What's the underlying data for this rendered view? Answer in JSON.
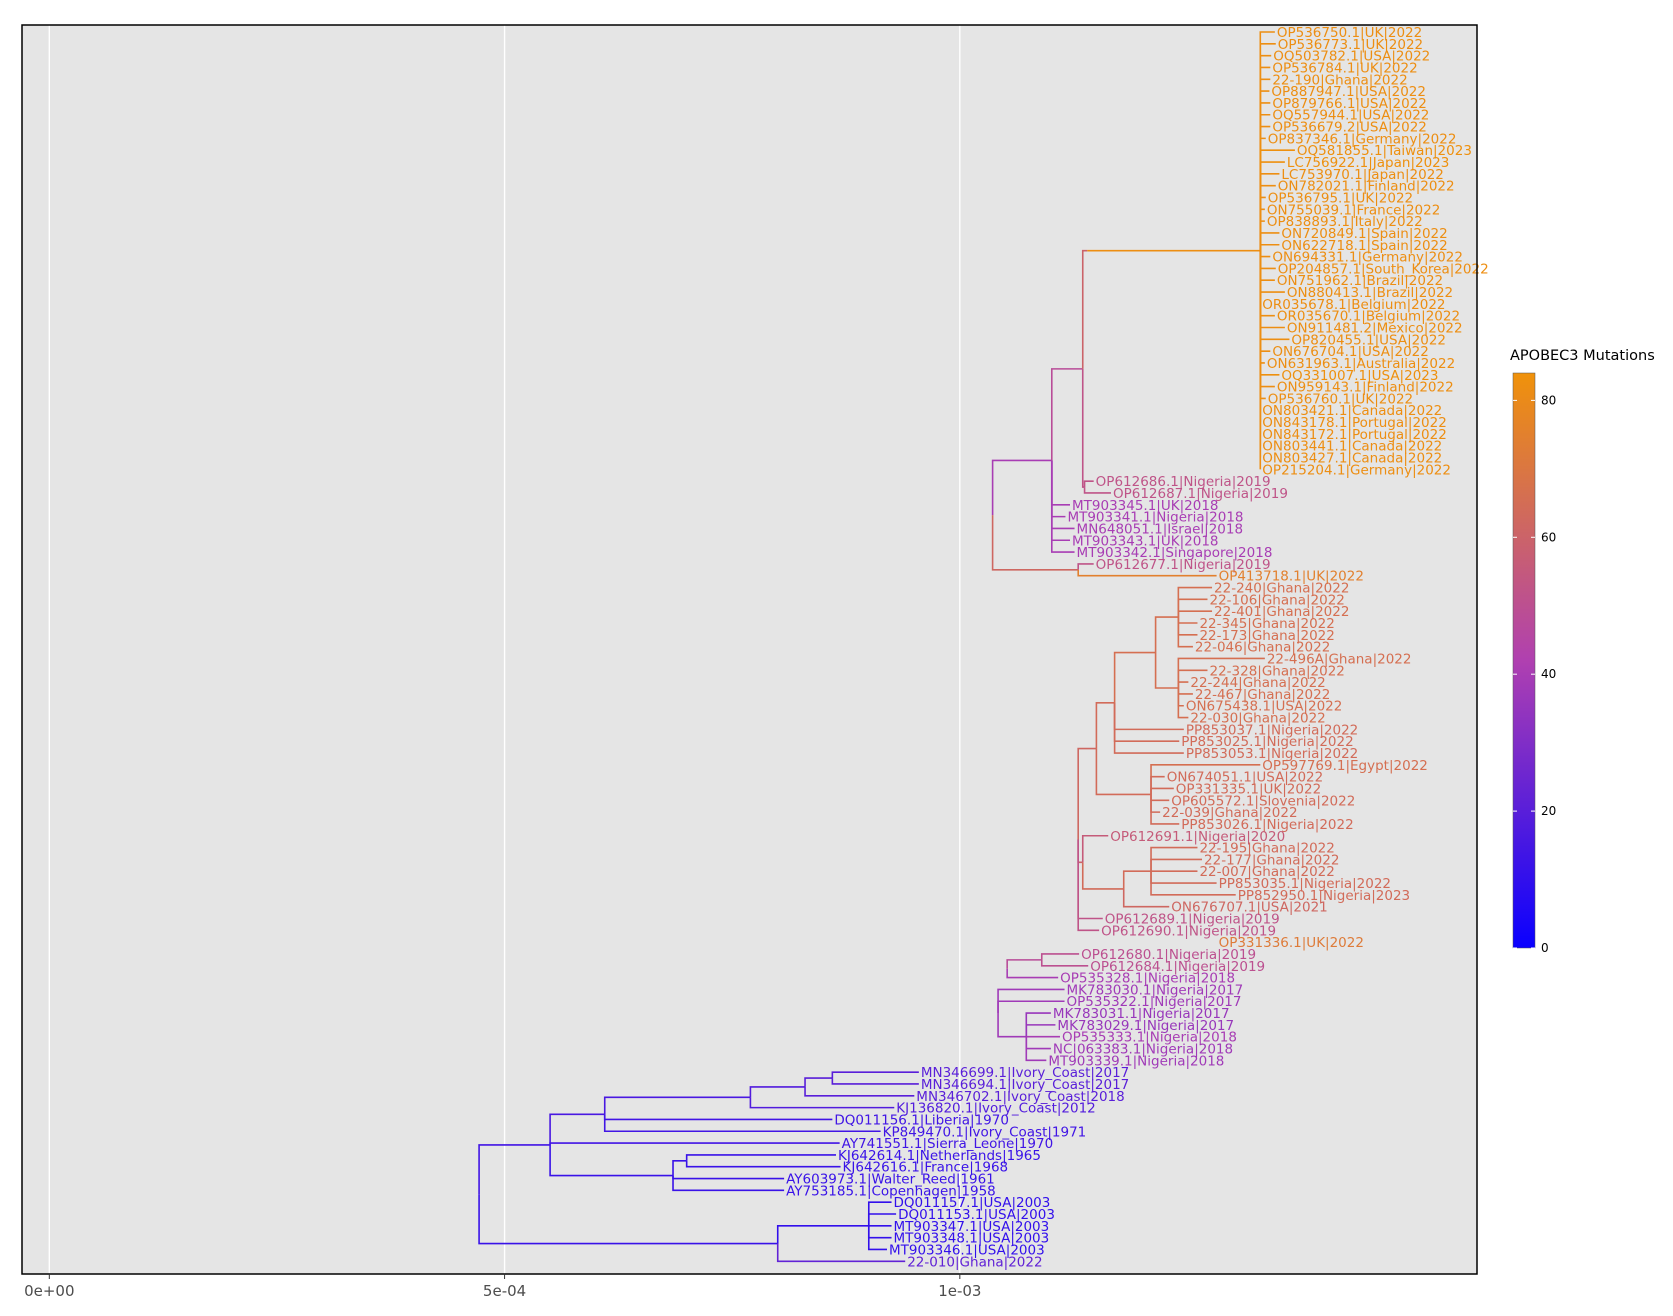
{
  "colors": {
    "panel_background": "#e5e5e5",
    "grid": "#ffffff",
    "panel_border": "#000000",
    "gradient_low": "#0a00ff",
    "gradient_mid": "#b040b0",
    "gradient_high": "#f0920a"
  },
  "chart_data": {
    "type": "phylogenetic_tree",
    "title": "",
    "xlabel": "",
    "ylabel": "",
    "xlim": [
      -3e-05,
      0.001568
    ],
    "x_ticks": [
      0,
      0.0005,
      0.001
    ],
    "x_tick_labels": [
      "0e+00",
      "5e-04",
      "1e-03"
    ],
    "grid": true,
    "legend": {
      "title": "APOBEC3 Mutations",
      "position": "right",
      "min": 0,
      "max": 84,
      "ticks": [
        0,
        20,
        40,
        60,
        80
      ]
    },
    "tips": [
      {
        "label": "OP536750.1|UK|2022",
        "x": 0.001346,
        "mut": 82
      },
      {
        "label": "OP536773.1|UK|2022",
        "x": 0.001347,
        "mut": 82
      },
      {
        "label": "OQ503782.1|USA|2022",
        "x": 0.001342,
        "mut": 82
      },
      {
        "label": "OP536784.1|UK|2022",
        "x": 0.001341,
        "mut": 82
      },
      {
        "label": "22-190|Ghana|2022",
        "x": 0.001341,
        "mut": 82
      },
      {
        "label": "OP887947.1|USA|2022",
        "x": 0.00134,
        "mut": 82
      },
      {
        "label": "OP879766.1|USA|2022",
        "x": 0.001341,
        "mut": 82
      },
      {
        "label": "OQ557944.1|USA|2022",
        "x": 0.001341,
        "mut": 82
      },
      {
        "label": "OP536679.2|USA|2022",
        "x": 0.001341,
        "mut": 82
      },
      {
        "label": "OP837346.1|Germany|2022",
        "x": 0.001336,
        "mut": 82
      },
      {
        "label": "OQ581855.1|Taiwan|2023",
        "x": 0.001368,
        "mut": 83
      },
      {
        "label": "LC756922.1|Japan|2023",
        "x": 0.001357,
        "mut": 83
      },
      {
        "label": "LC753970.1|Japan|2022",
        "x": 0.001351,
        "mut": 82
      },
      {
        "label": "ON782021.1|Finland|2022",
        "x": 0.001347,
        "mut": 82
      },
      {
        "label": "OP536795.1|UK|2022",
        "x": 0.001336,
        "mut": 82
      },
      {
        "label": "ON755039.1|France|2022",
        "x": 0.001335,
        "mut": 82
      },
      {
        "label": "OP838893.1|Italy|2022",
        "x": 0.001335,
        "mut": 82
      },
      {
        "label": "ON720849.1|Spain|2022",
        "x": 0.001351,
        "mut": 82
      },
      {
        "label": "ON622718.1|Spain|2022",
        "x": 0.001351,
        "mut": 82
      },
      {
        "label": "ON694331.1|Germany|2022",
        "x": 0.001341,
        "mut": 82
      },
      {
        "label": "OP204857.1|South_Korea|2022",
        "x": 0.001347,
        "mut": 82
      },
      {
        "label": "ON751962.1|Brazil|2022",
        "x": 0.001346,
        "mut": 82
      },
      {
        "label": "ON880413.1|Brazil|2022",
        "x": 0.001357,
        "mut": 82
      },
      {
        "label": "OR035678.1|Belgium|2022",
        "x": 0.00133,
        "mut": 82
      },
      {
        "label": "OR035670.1|Belgium|2022",
        "x": 0.001346,
        "mut": 82
      },
      {
        "label": "ON911481.2|Mexico|2022",
        "x": 0.001357,
        "mut": 82
      },
      {
        "label": "OP820455.1|USA|2022",
        "x": 0.001362,
        "mut": 82
      },
      {
        "label": "ON676704.1|USA|2022",
        "x": 0.001341,
        "mut": 82
      },
      {
        "label": "ON631963.1|Australia|2022",
        "x": 0.001335,
        "mut": 82
      },
      {
        "label": "OQ331007.1|USA|2023",
        "x": 0.001351,
        "mut": 83
      },
      {
        "label": "ON959143.1|Finland|2022",
        "x": 0.001346,
        "mut": 82
      },
      {
        "label": "OP536760.1|UK|2022",
        "x": 0.001336,
        "mut": 82
      },
      {
        "label": "ON803421.1|Canada|2022",
        "x": 0.00133,
        "mut": 82
      },
      {
        "label": "ON843178.1|Portugal|2022",
        "x": 0.00133,
        "mut": 82
      },
      {
        "label": "ON843172.1|Portugal|2022",
        "x": 0.00133,
        "mut": 82
      },
      {
        "label": "ON803441.1|Canada|2022",
        "x": 0.00133,
        "mut": 82
      },
      {
        "label": "ON803427.1|Canada|2022",
        "x": 0.00133,
        "mut": 82
      },
      {
        "label": "OP215204.1|Germany|2022",
        "x": 0.00133,
        "mut": 82
      },
      {
        "label": "OP612686.1|Nigeria|2019",
        "x": 0.001147,
        "mut": 52
      },
      {
        "label": "OP612687.1|Nigeria|2019",
        "x": 0.001166,
        "mut": 52
      },
      {
        "label": "MT903345.1|UK|2018",
        "x": 0.001121,
        "mut": 40
      },
      {
        "label": "MT903341.1|Nigeria|2018",
        "x": 0.001116,
        "mut": 40
      },
      {
        "label": "MN648051.1|Israel|2018",
        "x": 0.001126,
        "mut": 40
      },
      {
        "label": "MT903343.1|UK|2018",
        "x": 0.001121,
        "mut": 40
      },
      {
        "label": "MT903342.1|Singapore|2018",
        "x": 0.001126,
        "mut": 40
      },
      {
        "label": "OP612677.1|Nigeria|2019",
        "x": 0.001147,
        "mut": 52
      },
      {
        "label": "OP413718.1|UK|2022",
        "x": 0.001282,
        "mut": 75
      },
      {
        "label": "22-240|Ghana|2022",
        "x": 0.001277,
        "mut": 66
      },
      {
        "label": "22-106|Ghana|2022",
        "x": 0.001272,
        "mut": 66
      },
      {
        "label": "22-401|Ghana|2022",
        "x": 0.001277,
        "mut": 66
      },
      {
        "label": "22-345|Ghana|2022",
        "x": 0.001261,
        "mut": 66
      },
      {
        "label": "22-173|Ghana|2022",
        "x": 0.001261,
        "mut": 66
      },
      {
        "label": "22-046|Ghana|2022",
        "x": 0.001256,
        "mut": 66
      },
      {
        "label": "22-496A|Ghana|2022",
        "x": 0.001335,
        "mut": 66
      },
      {
        "label": "22-328|Ghana|2022",
        "x": 0.001272,
        "mut": 66
      },
      {
        "label": "22-244|Ghana|2022",
        "x": 0.001251,
        "mut": 66
      },
      {
        "label": "22-467|Ghana|2022",
        "x": 0.001256,
        "mut": 66
      },
      {
        "label": "ON675438.1|USA|2022",
        "x": 0.001246,
        "mut": 66
      },
      {
        "label": "22-030|Ghana|2022",
        "x": 0.001251,
        "mut": 66
      },
      {
        "label": "PP853037.1|Nigeria|2022",
        "x": 0.001246,
        "mut": 64
      },
      {
        "label": "PP853025.1|Nigeria|2022",
        "x": 0.001241,
        "mut": 64
      },
      {
        "label": "PP853053.1|Nigeria|2022",
        "x": 0.001246,
        "mut": 64
      },
      {
        "label": "OP597769.1|Egypt|2022",
        "x": 0.00133,
        "mut": 66
      },
      {
        "label": "ON674051.1|USA|2022",
        "x": 0.001225,
        "mut": 64
      },
      {
        "label": "OP331335.1|UK|2022",
        "x": 0.001235,
        "mut": 64
      },
      {
        "label": "OP605572.1|Slovenia|2022",
        "x": 0.00123,
        "mut": 64
      },
      {
        "label": "22-039|Ghana|2022",
        "x": 0.00122,
        "mut": 64
      },
      {
        "label": "PP853026.1|Nigeria|2022",
        "x": 0.001241,
        "mut": 64
      },
      {
        "label": "OP612691.1|Nigeria|2020",
        "x": 0.001163,
        "mut": 56
      },
      {
        "label": "22-195|Ghana|2022",
        "x": 0.001261,
        "mut": 64
      },
      {
        "label": "22-177|Ghana|2022",
        "x": 0.001266,
        "mut": 64
      },
      {
        "label": "22-007|Ghana|2022",
        "x": 0.001261,
        "mut": 64
      },
      {
        "label": "PP853035.1|Nigeria|2022",
        "x": 0.001282,
        "mut": 64
      },
      {
        "label": "PP852950.1|Nigeria|2023",
        "x": 0.001303,
        "mut": 64
      },
      {
        "label": "ON676707.1|USA|2021",
        "x": 0.00123,
        "mut": 62
      },
      {
        "label": "OP612689.1|Nigeria|2019",
        "x": 0.001157,
        "mut": 52
      },
      {
        "label": "OP612690.1|Nigeria|2019",
        "x": 0.001153,
        "mut": 52
      },
      {
        "label": "OP331336.1|UK|2022",
        "x": 0.001282,
        "mut": 72
      },
      {
        "label": "OP612680.1|Nigeria|2019",
        "x": 0.001131,
        "mut": 50
      },
      {
        "label": "OP612684.1|Nigeria|2019",
        "x": 0.001141,
        "mut": 50
      },
      {
        "label": "OP535328.1|Nigeria|2018",
        "x": 0.001108,
        "mut": 40
      },
      {
        "label": "MK783030.1|Nigeria|2017",
        "x": 0.001115,
        "mut": 38
      },
      {
        "label": "OP535322.1|Nigeria|2017",
        "x": 0.001115,
        "mut": 38
      },
      {
        "label": "MK783031.1|Nigeria|2017",
        "x": 0.0011,
        "mut": 36
      },
      {
        "label": "MK783029.1|Nigeria|2017",
        "x": 0.001105,
        "mut": 36
      },
      {
        "label": "OP535333.1|Nigeria|2018",
        "x": 0.00111,
        "mut": 40
      },
      {
        "label": "NC|063383.1|Nigeria|2018",
        "x": 0.0011,
        "mut": 38
      },
      {
        "label": "MT903339.1|Nigeria|2018",
        "x": 0.001095,
        "mut": 38
      },
      {
        "label": "MN346699.1|Ivory_Coast|2017",
        "x": 0.000955,
        "mut": 20
      },
      {
        "label": "MN346694.1|Ivory_Coast|2017",
        "x": 0.000955,
        "mut": 20
      },
      {
        "label": "MN346702.1|Ivory_Coast|2018",
        "x": 0.00095,
        "mut": 20
      },
      {
        "label": "KJ136820.1|Ivory_Coast|2012",
        "x": 0.000928,
        "mut": 18
      },
      {
        "label": "DQ011156.1|Liberia|1970",
        "x": 0.00086,
        "mut": 14
      },
      {
        "label": "KP849470.1|Ivory_Coast|1971",
        "x": 0.000913,
        "mut": 14
      },
      {
        "label": "AY741551.1|Sierra_Leone|1970",
        "x": 0.000868,
        "mut": 14
      },
      {
        "label": "KJ642614.1|Netherlands|1965",
        "x": 0.000864,
        "mut": 12
      },
      {
        "label": "KJ642616.1|France|1968",
        "x": 0.000869,
        "mut": 12
      },
      {
        "label": "AY603973.1|Walter_Reed|1961",
        "x": 0.000807,
        "mut": 12
      },
      {
        "label": "AY753185.1|Copenhagen|1958",
        "x": 0.000807,
        "mut": 12
      },
      {
        "label": "DQ011157.1|USA|2003",
        "x": 0.000925,
        "mut": 10
      },
      {
        "label": "DQ011153.1|USA|2003",
        "x": 0.00093,
        "mut": 10
      },
      {
        "label": "MT903347.1|USA|2003",
        "x": 0.000925,
        "mut": 10
      },
      {
        "label": "MT903348.1|USA|2003",
        "x": 0.000925,
        "mut": 10
      },
      {
        "label": "MT903346.1|USA|2003",
        "x": 0.00092,
        "mut": 10
      },
      {
        "label": "22-010|Ghana|2022",
        "x": 0.00094,
        "mut": 22
      }
    ],
    "internal_nodes": [
      {
        "id": "root",
        "x": 0.0,
        "parent": null,
        "mut": 24
      },
      {
        "id": "A",
        "x": 0.001033,
        "parent": "root",
        "mut": 38
      },
      {
        "id": "B",
        "x": 0.000472,
        "parent": "root",
        "mut": 14
      },
      {
        "id": "C",
        "x": 0.001036,
        "parent": "A",
        "mut": 40
      },
      {
        "id": "D",
        "x": 0.00111,
        "parent": "A",
        "mut": 52
      },
      {
        "id": "E",
        "x": 0.001052,
        "parent": "A",
        "mut": 40
      },
      {
        "id": "F",
        "x": 0.001042,
        "parent": "A",
        "mut": 38
      },
      {
        "id": "G",
        "x": 0.001101,
        "parent": "C",
        "mut": 40
      },
      {
        "id": "H",
        "x": 0.001135,
        "parent": "G",
        "mut": 48
      },
      {
        "id": "I",
        "x": 0.00114,
        "parent": "H",
        "mut": 60
      },
      {
        "id": "J",
        "x": 0.00133,
        "parent": "I",
        "mut": 82
      },
      {
        "id": "K",
        "x": 0.001137,
        "parent": "H",
        "mut": 52
      },
      {
        "id": "L",
        "x": 0.00113,
        "parent": "C",
        "mut": 62
      },
      {
        "id": "M",
        "x": 0.00113,
        "parent": "D",
        "mut": 60
      },
      {
        "id": "N",
        "x": 0.00115,
        "parent": "M",
        "mut": 62
      },
      {
        "id": "O",
        "x": 0.00117,
        "parent": "N",
        "mut": 64
      },
      {
        "id": "P",
        "x": 0.001215,
        "parent": "O",
        "mut": 66
      },
      {
        "id": "Q",
        "x": 0.00124,
        "parent": "P",
        "mut": 66
      },
      {
        "id": "R",
        "x": 0.00124,
        "parent": "P",
        "mut": 66
      },
      {
        "id": "S",
        "x": 0.00121,
        "parent": "N",
        "mut": 64
      },
      {
        "id": "T",
        "x": 0.001135,
        "parent": "M",
        "mut": 60
      },
      {
        "id": "U",
        "x": 0.00118,
        "parent": "T",
        "mut": 64
      },
      {
        "id": "V",
        "x": 0.00121,
        "parent": "U",
        "mut": 64
      },
      {
        "id": "W",
        "x": 0.00119,
        "parent": "D",
        "mut": 62
      },
      {
        "id": "X",
        "x": 0.00124,
        "parent": "W",
        "mut": 64
      },
      {
        "id": "Y",
        "x": 0.00109,
        "parent": "E",
        "mut": 48
      },
      {
        "id": "Z",
        "x": 0.001073,
        "parent": "F",
        "mut": 38
      },
      {
        "id": "b1",
        "x": 0.00055,
        "parent": "B",
        "mut": 14
      },
      {
        "id": "b2",
        "x": 0.00061,
        "parent": "b1",
        "mut": 16
      },
      {
        "id": "b3",
        "x": 0.00077,
        "parent": "b2",
        "mut": 16
      },
      {
        "id": "b4",
        "x": 0.00083,
        "parent": "b3",
        "mut": 18
      },
      {
        "id": "b5",
        "x": 0.00086,
        "parent": "b4",
        "mut": 20
      },
      {
        "id": "b6",
        "x": 0.000685,
        "parent": "b1",
        "mut": 12
      },
      {
        "id": "b7",
        "x": 0.0007,
        "parent": "b6",
        "mut": 12
      },
      {
        "id": "b8",
        "x": 0.0008,
        "parent": "B",
        "mut": 12
      },
      {
        "id": "b9",
        "x": 0.0009,
        "parent": "b8",
        "mut": 10
      }
    ],
    "leaf_parents": [
      "J",
      "J",
      "J",
      "J",
      "J",
      "J",
      "J",
      "J",
      "J",
      "J",
      "J",
      "J",
      "J",
      "J",
      "J",
      "J",
      "J",
      "J",
      "J",
      "J",
      "J",
      "J",
      "J",
      "J",
      "J",
      "J",
      "J",
      "J",
      "J",
      "J",
      "J",
      "J",
      "J",
      "J",
      "J",
      "J",
      "J",
      "J",
      "K",
      "K",
      "G",
      "G",
      "G",
      "G",
      "G",
      "L",
      "L",
      "Q",
      "Q",
      "Q",
      "Q",
      "Q",
      "Q",
      "R",
      "R",
      "R",
      "R",
      "R",
      "R",
      "O",
      "O",
      "O",
      "S",
      "S",
      "S",
      "S",
      "S",
      "S",
      "T",
      "V",
      "V",
      "V",
      "V",
      "V",
      "U",
      "M",
      "M",
      "D",
      "Y",
      "Y",
      "E",
      "F",
      "F",
      "Z",
      "Z",
      "Z",
      "Z",
      "Z",
      "b5",
      "b5",
      "b4",
      "b3",
      "b2",
      "b2",
      "b1",
      "b7",
      "b7",
      "b6",
      "b6",
      "b9",
      "b9",
      "b9",
      "b9",
      "b9",
      "b8"
    ]
  }
}
